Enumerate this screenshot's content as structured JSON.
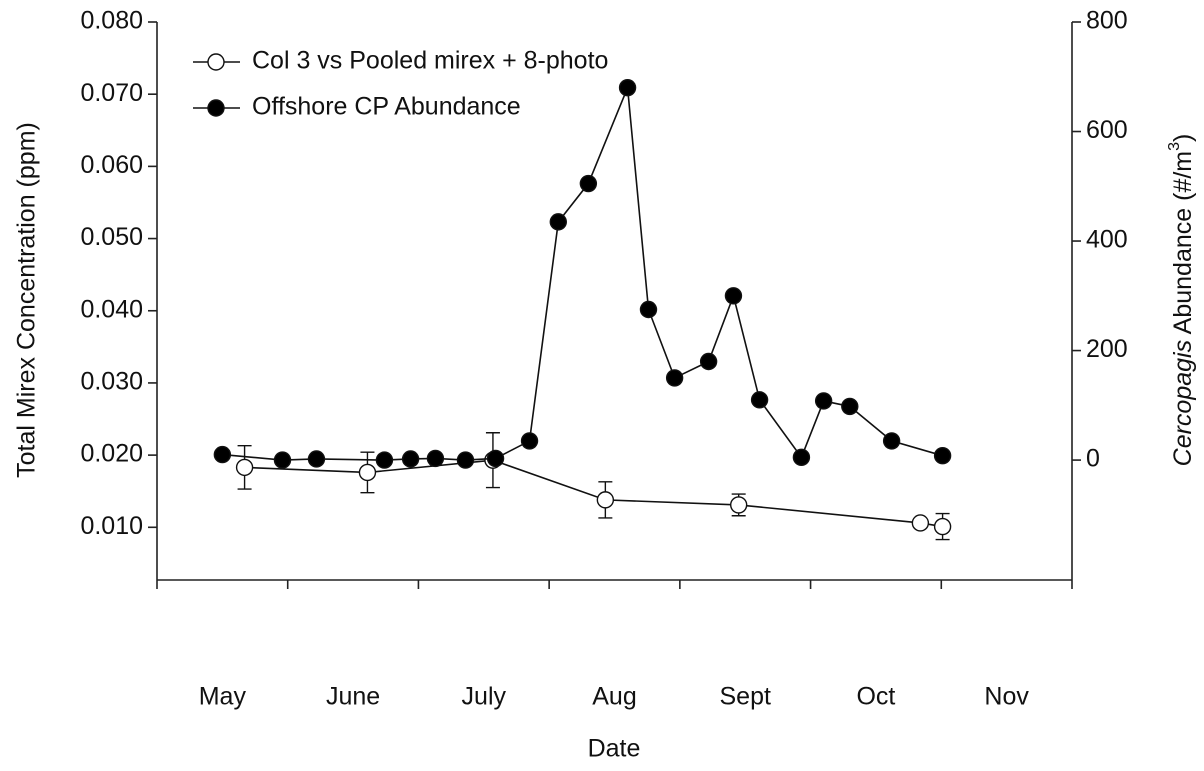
{
  "chart_data": {
    "type": "line",
    "xlabel": "Date",
    "ylabel": "Total Mirex Concentration (ppm)",
    "y2label_italic": "Cercopagis",
    "y2label": "Abundance (#/m",
    "y2label_sup": "3",
    "y2label_end": ")",
    "x_labels": [
      "May",
      "June",
      "July",
      "Aug",
      "Sept",
      "Oct",
      "Nov"
    ],
    "xlim": [
      0,
      7
    ],
    "xticks": [
      0,
      1,
      2,
      3,
      4,
      5,
      6,
      7
    ],
    "ylim": [
      0.0027,
      0.08
    ],
    "yticks": [
      {
        "value": 0.01,
        "label": "0.010"
      },
      {
        "value": 0.02,
        "label": "0.020"
      },
      {
        "value": 0.03,
        "label": "0.030"
      },
      {
        "value": 0.04,
        "label": "0.040"
      },
      {
        "value": 0.05,
        "label": "0.050"
      },
      {
        "value": 0.06,
        "label": "0.060"
      },
      {
        "value": 0.07,
        "label": "0.070"
      },
      {
        "value": 0.08,
        "label": "0.080"
      }
    ],
    "y2lim": [
      -219,
      800
    ],
    "y2ticks": [
      0,
      200,
      400,
      600,
      800
    ],
    "series": [
      {
        "name": "Col 3 vs Pooled mirex + 8-photo",
        "color": "#ffffff",
        "marker": "open",
        "x": [
          0.67,
          1.61,
          2.57,
          3.43,
          4.45,
          5.84,
          6.01
        ],
        "values": [
          0.0183,
          0.0176,
          0.0193,
          0.0138,
          0.0131,
          0.0106,
          0.0101
        ],
        "errors": [
          0.003,
          0.0028,
          0.0038,
          0.0025,
          0.0015,
          0,
          0.0018
        ]
      },
      {
        "name": "Offshore CP Abundance",
        "color": "#000000",
        "marker": "filled",
        "axis": "y2",
        "x": [
          0.5,
          0.96,
          1.22,
          1.74,
          1.94,
          2.13,
          2.36,
          2.59,
          2.85,
          3.07,
          3.3,
          3.6,
          3.76,
          3.96,
          4.22,
          4.41,
          4.61,
          4.93,
          5.1,
          5.3,
          5.62,
          6.01
        ],
        "values": [
          10,
          0,
          2,
          0,
          2,
          3,
          0,
          3,
          35,
          435,
          505,
          680,
          275,
          150,
          180,
          300,
          110,
          5,
          108,
          98,
          35,
          8
        ]
      }
    ]
  }
}
